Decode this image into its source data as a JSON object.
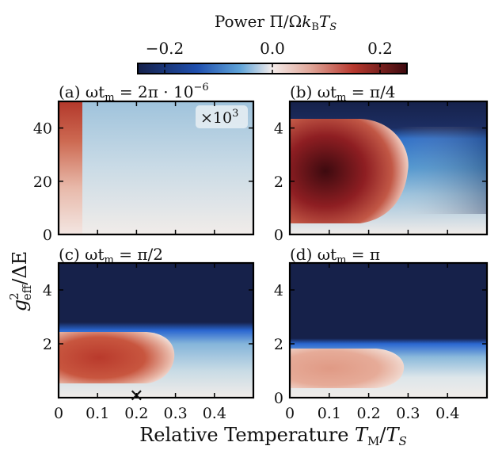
{
  "colorbar": {
    "label": "Power Π/Ωk_B T_S",
    "label_main": "Power Π/Ω",
    "label_k": "k",
    "label_k_sub": "B",
    "label_T": "T",
    "label_T_sub": "S",
    "ticks": [
      "−0.2",
      "0.0",
      "0.2"
    ],
    "tick_values": [
      -0.2,
      0.0,
      0.2
    ],
    "range": [
      -0.25,
      0.25
    ],
    "colors": {
      "negative": "#16214a",
      "mid_negative": "#2f7fd6",
      "zero": "#f4ecea",
      "mid_positive": "#c2553c",
      "positive": "#3d0a0f"
    }
  },
  "ylabel": "g_eff^2/ΔE",
  "ylabel_parts": {
    "g": "g",
    "sup": "2",
    "sub": "eff",
    "rest": "/ΔE"
  },
  "xlabel": "Relative Temperature T_M/T_S",
  "xlabel_parts": {
    "main": "Relative Temperature ",
    "T1": "T",
    "T1_sub": "M",
    "slash": "/",
    "T2": "T",
    "T2_sub": "S"
  },
  "chart_data": [
    {
      "type": "heatmap",
      "panel": "(a)",
      "title": "(a) ωt_m = 2π · 10^−6",
      "title_parts": {
        "prefix": "(a) ωt",
        "sub": "m",
        "eq": " = 2π · 10",
        "sup": "−6"
      },
      "annotation": "×10^3",
      "annotation_parts": {
        "base": "×10",
        "sup": "3"
      },
      "xlim": [
        0,
        0.5
      ],
      "ylim": [
        0,
        50
      ],
      "yticks": [
        "0",
        "20",
        "40"
      ],
      "ytick_values": [
        0,
        20,
        40
      ],
      "xticks": [],
      "xtick_values": [
        0,
        0.1,
        0.2,
        0.3,
        0.4
      ],
      "description_values": {
        "positive_band_x_max": 0.06,
        "peak_power_scaled": 0.2,
        "field_power_scaled": -0.08
      }
    },
    {
      "type": "heatmap",
      "panel": "(b)",
      "title": "(b) ωt_m = π/4",
      "title_parts": {
        "prefix": "(b) ωt",
        "sub": "m",
        "eq": " = π/4"
      },
      "xlim": [
        0,
        0.5
      ],
      "ylim": [
        0,
        5
      ],
      "yticks": [
        "0",
        "2",
        "4"
      ],
      "ytick_values": [
        0,
        2,
        4
      ],
      "xticks": [],
      "xtick_values": [
        0,
        0.1,
        0.2,
        0.3,
        0.4
      ],
      "description_values": {
        "positive_region_x_max": 0.29,
        "positive_region_y_center": 2.5,
        "peak_power": 0.25,
        "negative_above_y": 4.6
      }
    },
    {
      "type": "heatmap",
      "panel": "(c)",
      "title": "(c) ωt_m = π/2",
      "title_parts": {
        "prefix": "(c) ωt",
        "sub": "m",
        "eq": " = π/2"
      },
      "xlim": [
        0,
        0.5
      ],
      "ylim": [
        0,
        5
      ],
      "yticks": [
        "2",
        "4"
      ],
      "ytick_values": [
        2,
        4
      ],
      "xticks": [
        "0",
        "0.1",
        "0.2",
        "0.3",
        "0.4"
      ],
      "xtick_values": [
        0,
        0.1,
        0.2,
        0.3,
        0.4
      ],
      "marker": {
        "x": 0.2,
        "y": 0.0,
        "symbol": "✕"
      },
      "description_values": {
        "positive_region_x_max": 0.28,
        "positive_region_y_center": 1.25,
        "peak_power": 0.16,
        "negative_above_y": 2.6
      }
    },
    {
      "type": "heatmap",
      "panel": "(d)",
      "title": "(d) ωt_m = π",
      "title_parts": {
        "prefix": "(d) ωt",
        "sub": "m",
        "eq": " = π"
      },
      "xlim": [
        0,
        0.5
      ],
      "ylim": [
        0,
        5
      ],
      "yticks": [
        "0",
        "2",
        "4"
      ],
      "ytick_values": [
        0,
        2,
        4
      ],
      "xticks": [
        "0",
        "0.1",
        "0.2",
        "0.3",
        "0.4"
      ],
      "xtick_values": [
        0,
        0.1,
        0.2,
        0.3,
        0.4
      ],
      "description_values": {
        "positive_region_x_max": 0.28,
        "positive_region_y_center": 1.0,
        "peak_power": 0.1,
        "negative_above_y": 2.1
      }
    }
  ]
}
